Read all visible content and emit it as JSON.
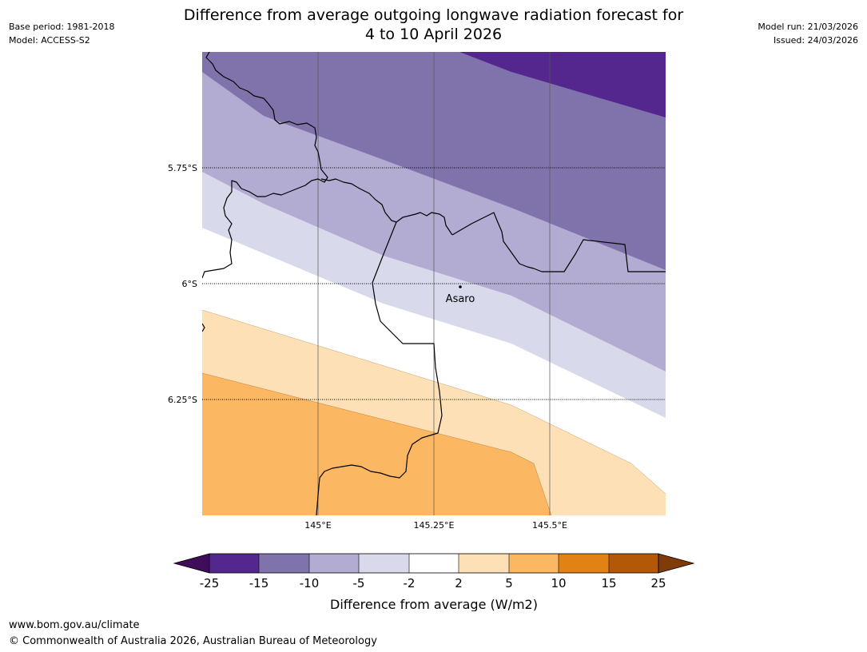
{
  "header": {
    "title_line1": "Difference from average outgoing longwave radiation forecast for",
    "title_line2": "4 to 10 April 2026",
    "base_period": "Base period: 1981-2018",
    "model": "Model: ACCESS-S2",
    "model_run": "Model run: 21/03/2026",
    "issued": "Issued: 24/03/2026"
  },
  "map": {
    "latitude_labels": [
      "5.75°S",
      "6°S",
      "6.25°S"
    ],
    "longitude_labels": [
      "145°E",
      "145.25°E",
      "145.5°E"
    ],
    "place": {
      "name": "Asaro"
    },
    "colors": {
      "below_25": "#3f0d5a",
      "m25_m15": "#54278f",
      "m15_m10": "#8073ac",
      "m10_m5": "#b2abd2",
      "m5_m2": "#d8daeb",
      "m2_2": "#ffffff",
      "p2_p5": "#fee0b6",
      "p5_p10": "#fbb761",
      "p10_p15": "#e08214",
      "p15_p25": "#b35806",
      "above_25": "#7f3b08"
    }
  },
  "colorbar": {
    "ticks": [
      "-25",
      "-15",
      "-10",
      "-5",
      "-2",
      "2",
      "5",
      "10",
      "15",
      "25"
    ],
    "label": "Difference from average (W/m2)"
  },
  "footer": {
    "url": "www.bom.gov.au/climate",
    "copyright": "© Commonwealth of Australia 2026, Australian Bureau of Meteorology"
  }
}
